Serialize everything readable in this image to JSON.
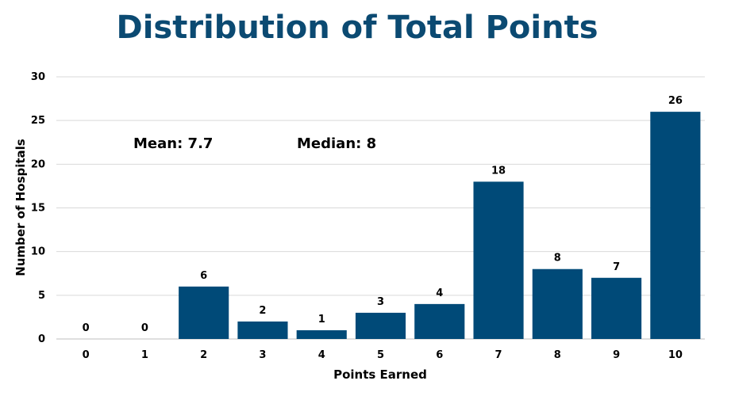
{
  "chart_data": {
    "type": "bar",
    "title": "Distribution of Total Points",
    "xlabel": "Points Earned",
    "ylabel": "Number of Hospitals",
    "categories": [
      "0",
      "1",
      "2",
      "3",
      "4",
      "5",
      "6",
      "7",
      "8",
      "9",
      "10"
    ],
    "values": [
      0,
      0,
      6,
      2,
      1,
      3,
      4,
      18,
      8,
      7,
      26
    ],
    "data_labels": [
      "0",
      "0",
      "6",
      "2",
      "1",
      "3",
      "4",
      "18",
      "8",
      "7",
      "26"
    ],
    "ylim": [
      0,
      30
    ],
    "yticks": [
      0,
      5,
      10,
      15,
      20,
      25,
      30
    ],
    "ytick_labels": [
      "0",
      "5",
      "10",
      "15",
      "20",
      "25",
      "30"
    ],
    "grid": true,
    "legend": "none",
    "bar_color": "#004a78",
    "title_color": "#0b4a72",
    "annotations": {
      "mean": "Mean: 7.7",
      "median": "Median: 8"
    }
  }
}
